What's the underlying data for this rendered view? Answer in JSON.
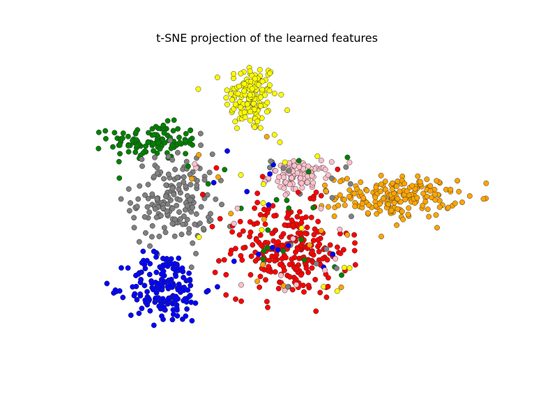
{
  "chart_data": {
    "type": "scatter",
    "title": "t-SNE projection of the learned features",
    "xlabel": "",
    "ylabel": "",
    "axes_visible": false,
    "grid": false,
    "legend": null,
    "xlim": [
      -50,
      50
    ],
    "ylim": [
      -50,
      50
    ],
    "point_style": {
      "edge_color": "#333333",
      "alpha": 0.95
    },
    "clusters": [
      {
        "color": "#ffff00",
        "points_count": 140,
        "center": [
          -7,
          37
        ],
        "spread": [
          3.5,
          6
        ],
        "shape_note": "tall blob top-center"
      },
      {
        "color": "#008000",
        "points_count": 110,
        "center": [
          -33,
          22
        ],
        "spread": [
          6,
          3
        ],
        "shape_note": "elongated band top-left"
      },
      {
        "color": "#808080",
        "points_count": 170,
        "center": [
          -28,
          2
        ],
        "spread": [
          5.5,
          8
        ],
        "shape_note": "central-left gray cluster"
      },
      {
        "color": "#ffc0cb",
        "points_count": 90,
        "center": [
          6,
          10
        ],
        "spread": [
          4,
          2.5
        ],
        "shape_note": "pink cluster center"
      },
      {
        "color": "#ffa500",
        "points_count": 190,
        "center": [
          32,
          3
        ],
        "spread": [
          8,
          3.5
        ],
        "shape_note": "orange cluster right"
      },
      {
        "color": "#ff0000",
        "points_count": 240,
        "center": [
          3,
          -15
        ],
        "spread": [
          8,
          8
        ],
        "shape_note": "large red cluster bottom-center"
      },
      {
        "color": "#0000ff",
        "points_count": 180,
        "center": [
          -30,
          -28
        ],
        "spread": [
          5,
          6
        ],
        "shape_note": "blue cluster bottom-left"
      }
    ]
  }
}
